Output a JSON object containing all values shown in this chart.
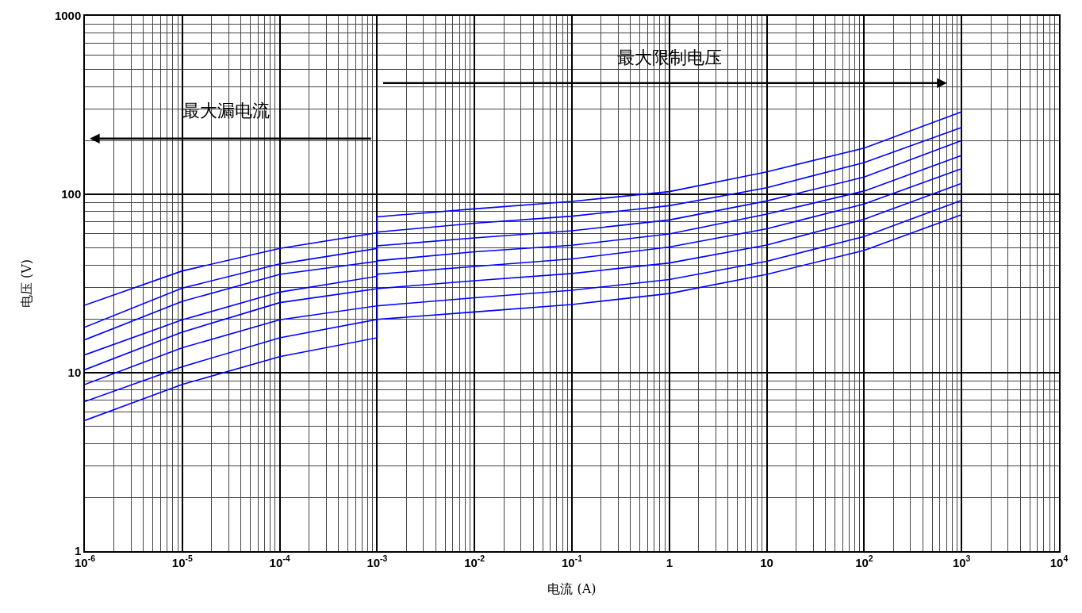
{
  "chart_data": {
    "type": "line",
    "xlabel": "电流 (A)",
    "ylabel": "电压 (V)",
    "annotations": [
      "最大漏电流",
      "最大限制电压"
    ],
    "log": "xy",
    "grid": true,
    "line_style": "solid",
    "marker": "none",
    "xlim": [
      1e-06,
      10000
    ],
    "ylim": [
      1,
      1000
    ],
    "xticks": [
      {
        "value": 1e-06,
        "label": "10$^{-6}$"
      },
      {
        "value": 1e-05,
        "label": "10$^{-5}$"
      },
      {
        "value": 0.0001,
        "label": "10$^{-4}$"
      },
      {
        "value": 0.001,
        "label": "10$^{-3}$"
      },
      {
        "value": 0.01,
        "label": "10$^{-2}$"
      },
      {
        "value": 0.1,
        "label": "10$^{-1}$"
      },
      1,
      10,
      {
        "value": 100,
        "label": "10$^{2}$"
      },
      {
        "value": 1000,
        "label": "10$^{3}$"
      },
      {
        "value": 10000,
        "label": "10$^{4}$"
      }
    ],
    "yticks": [
      1,
      10,
      100,
      1000
    ],
    "x": [
      1e-06,
      1e-05,
      0.0001,
      0.001,
      0.001,
      0.01,
      0.1,
      1,
      10,
      100,
      1000
    ],
    "series": [
      {
        "color": "#0000ff",
        "values": [
          23.9,
          37.2,
          49.7,
          60.9,
          74.8,
          82.9,
          91.2,
          103.5,
          133.6,
          181.6,
          290
        ]
      },
      {
        "color": "#0000ff",
        "values": [
          18.0,
          29.8,
          40.7,
          49.7,
          61.4,
          68.8,
          75.4,
          86.3,
          108.9,
          150.6,
          237
        ]
      },
      {
        "color": "#0000ff",
        "values": [
          15.3,
          25.1,
          35.6,
          42.1,
          51.4,
          57.0,
          62.5,
          71.8,
          91.8,
          124.8,
          200
        ]
      },
      {
        "color": "#0000ff",
        "values": [
          12.6,
          19.8,
          28.3,
          34.7,
          42.4,
          47.6,
          51.8,
          60.0,
          77.4,
          104.3,
          165
        ]
      },
      {
        "color": "#0000ff",
        "values": [
          10.4,
          16.9,
          24.7,
          29.6,
          35.7,
          39.4,
          43.4,
          50.6,
          64.1,
          88.3,
          139
        ]
      },
      {
        "color": "#0000ff",
        "values": [
          8.6,
          13.8,
          19.8,
          23.7,
          29.6,
          32.8,
          36.0,
          41.2,
          51.9,
          72.5,
          115
        ]
      },
      {
        "color": "#0000ff",
        "values": [
          6.9,
          10.8,
          15.7,
          19.9,
          23.7,
          26.3,
          29.0,
          33.3,
          42.1,
          58.0,
          92.5
        ]
      },
      {
        "color": "#0000ff",
        "values": [
          5.4,
          8.6,
          12.3,
          15.7,
          19.9,
          21.9,
          24.1,
          27.8,
          35.6,
          48.5,
          76.9
        ]
      }
    ]
  }
}
